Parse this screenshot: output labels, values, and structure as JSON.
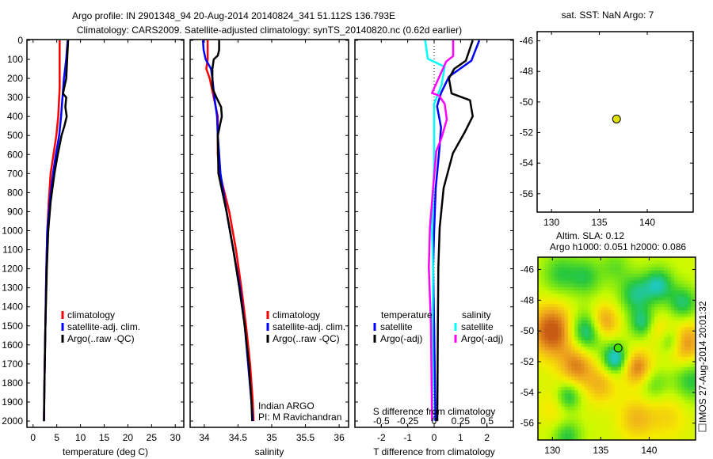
{
  "title": {
    "line1": "Argo profile: IN 2901348_94 20-Aug-2014 20140824_341 51.112S 136.793E",
    "line2": "Climatology: CARS2009. Satellite-adjusted climatology: synTS_20140820.nc (0.62d earlier)"
  },
  "colors": {
    "climatology": "#ff0000",
    "satellite": "#0000ff",
    "argo": "#000000",
    "sal_satellite": "#00ffff",
    "sal_argo": "#ff00ff"
  },
  "chart_data": [
    {
      "type": "line",
      "id": "temperature",
      "xlabel": "temperature (deg C)",
      "ylabel": "",
      "xlim": [
        -1.3,
        31.8
      ],
      "ylim": [
        2033,
        -4
      ],
      "xticks": [
        0,
        5,
        10,
        15,
        20,
        25,
        30
      ],
      "xtick_labels": [
        "0",
        "5",
        "10",
        "15",
        "20",
        "25",
        "30"
      ],
      "yticks": [
        0,
        100,
        200,
        300,
        400,
        500,
        600,
        700,
        800,
        900,
        1000,
        1100,
        1200,
        1300,
        1400,
        1500,
        1600,
        1700,
        1800,
        1900,
        2000
      ],
      "ytick_labels": [
        "0",
        "100",
        "200",
        "300",
        "400",
        "500",
        "600",
        "700",
        "800",
        "900",
        "1000",
        "1100",
        "1200",
        "1300",
        "1400",
        "1500",
        "1600",
        "1700",
        "1800",
        "1900",
        "2000"
      ],
      "legend": [
        "climatology",
        "satellite-adj. clim.",
        "Argo(..raw -QC)"
      ],
      "series": [
        {
          "name": "climatology",
          "color": "#ff0000",
          "depth": [
            0,
            100,
            250,
            300,
            400,
            500,
            600,
            700,
            850,
            1000,
            1200,
            1500,
            1800,
            2000
          ],
          "values": [
            5.6,
            5.6,
            5.6,
            5.5,
            5.3,
            4.9,
            4.3,
            3.7,
            3.3,
            3.0,
            2.8,
            2.6,
            2.4,
            2.3
          ]
        },
        {
          "name": "satellite-adj. clim.",
          "color": "#0000ff",
          "depth": [
            0,
            100,
            200,
            300,
            400,
            500,
            600,
            700,
            850,
            1000,
            1200,
            1500,
            1800,
            2000
          ],
          "values": [
            7.3,
            7.0,
            6.5,
            6.2,
            5.9,
            5.5,
            4.8,
            4.2,
            3.5,
            3.0,
            2.8,
            2.6,
            2.4,
            2.3
          ]
        },
        {
          "name": "Argo(..raw -QC)",
          "color": "#000000",
          "depth": [
            0,
            100,
            200,
            280,
            300,
            350,
            400,
            450,
            500,
            600,
            700,
            850,
            1000,
            1200,
            1500,
            1800,
            2000
          ],
          "values": [
            7.4,
            7.2,
            7.0,
            6.3,
            7.0,
            6.8,
            7.1,
            6.6,
            6.0,
            5.2,
            4.5,
            3.7,
            3.2,
            2.9,
            2.6,
            2.4,
            2.3
          ]
        }
      ]
    },
    {
      "type": "line",
      "id": "salinity",
      "xlabel": "salinity",
      "xlim": [
        33.79,
        36.14
      ],
      "ylim": [
        2033,
        -4
      ],
      "xticks": [
        34,
        34.5,
        35,
        35.5,
        36
      ],
      "xtick_labels": [
        "34",
        "34.5",
        "35",
        "35.5",
        "36"
      ],
      "legend": [
        "climatology",
        "satellite-adj. clim.",
        "Argo(..raw -QC)"
      ],
      "annotation": [
        "Indian ARGO",
        "PI: M Ravichandran"
      ],
      "series": [
        {
          "name": "climatology",
          "color": "#ff0000",
          "depth": [
            0,
            100,
            150,
            200,
            300,
            400,
            500,
            600,
            700,
            900,
            1100,
            1300,
            1500,
            1700,
            1900,
            2000
          ],
          "values": [
            34.05,
            34.05,
            34.03,
            34.08,
            34.14,
            34.2,
            34.2,
            34.2,
            34.23,
            34.37,
            34.47,
            34.55,
            34.62,
            34.68,
            34.72,
            34.73
          ]
        },
        {
          "name": "satellite-adj. clim.",
          "color": "#0000ff",
          "depth": [
            0,
            50,
            100,
            150,
            200,
            300,
            400,
            500,
            700,
            900,
            1100,
            1300,
            1500,
            1700,
            1900,
            2000
          ],
          "values": [
            33.98,
            33.99,
            34.02,
            34.1,
            34.12,
            34.15,
            34.19,
            34.2,
            34.24,
            34.33,
            34.43,
            34.53,
            34.6,
            34.65,
            34.7,
            34.72
          ]
        },
        {
          "name": "Argo(..raw -QC)",
          "color": "#000000",
          "depth": [
            0,
            50,
            80,
            100,
            150,
            250,
            300,
            350,
            400,
            450,
            500,
            700,
            900,
            1100,
            1300,
            1500,
            1700,
            1900,
            2000
          ],
          "values": [
            34.22,
            34.22,
            34.2,
            34.14,
            34.12,
            34.12,
            34.18,
            34.25,
            34.26,
            34.23,
            34.2,
            34.21,
            34.33,
            34.43,
            34.52,
            34.6,
            34.66,
            34.7,
            34.71
          ]
        }
      ]
    },
    {
      "type": "line",
      "id": "difference",
      "xlabel": "T difference from climatology",
      "xlim": [
        -3,
        3
      ],
      "ylim": [
        2033,
        -4
      ],
      "xticks": [
        -2,
        -1,
        0,
        1,
        2
      ],
      "xtick_labels": [
        "-2",
        "-1",
        "0",
        "1",
        "2"
      ],
      "x2label": "S difference from climatology",
      "x2lim": [
        -0.75,
        0.75
      ],
      "x2ticks": [
        -0.5,
        -0.25,
        0,
        0.25,
        0.5
      ],
      "x2tick_labels": [
        "-0.5",
        "-0.25",
        "0",
        "0.25",
        "0.5"
      ],
      "legend_headers": [
        "temperature",
        "salinity"
      ],
      "legend": [
        "satellite",
        "Argo(-adj)",
        "satellite",
        "Argo(-adj)"
      ],
      "series": [
        {
          "name": "T satellite",
          "axis": "T",
          "color": "#0000ff",
          "depth": [
            0,
            107,
            191,
            277,
            346,
            457,
            568,
            776,
            1000,
            1192,
            1500,
            2000
          ],
          "values": [
            1.71,
            1.41,
            0.56,
            0.26,
            0.11,
            0.26,
            0.2,
            0.06,
            0.0,
            -0.04,
            0.0,
            0.05
          ]
        },
        {
          "name": "T Argo(-adj)",
          "axis": "T",
          "color": "#000000",
          "depth": [
            0,
            107,
            150,
            200,
            279,
            315,
            399,
            482,
            593,
            776,
            983,
            1192,
            1500,
            2000
          ],
          "values": [
            1.46,
            1.2,
            0.76,
            0.56,
            0.66,
            1.36,
            1.46,
            1.16,
            0.71,
            0.36,
            0.21,
            0.16,
            0.14,
            0.12
          ]
        },
        {
          "name": "S satellite",
          "axis": "S",
          "color": "#00ffff",
          "depth": [
            0,
            97,
            139,
            236,
            333,
            652,
            999,
            1192,
            1500,
            2000
          ],
          "values": [
            -0.085,
            -0.06,
            0.1,
            0.07,
            0.0,
            0.0,
            -0.02,
            -0.01,
            -0.015,
            -0.015
          ]
        },
        {
          "name": "S Argo(-adj)",
          "axis": "S",
          "color": "#ff00ff",
          "depth": [
            0,
            83,
            111,
            166,
            277,
            290,
            333,
            416,
            513,
            582,
            776,
            983,
            1192,
            1500,
            2000
          ],
          "values": [
            0.18,
            0.18,
            0.115,
            0.07,
            -0.02,
            0.045,
            0.1,
            0.12,
            0.07,
            0.02,
            -0.01,
            -0.04,
            -0.05,
            -0.03,
            -0.02
          ]
        }
      ]
    },
    {
      "type": "scatter",
      "id": "sst-map",
      "title": "sat. SST: NaN Argo: 7",
      "xlim": [
        128.5,
        144.8
      ],
      "ylim": [
        -57.2,
        -45.4
      ],
      "xticks": [
        130,
        135,
        140
      ],
      "xtick_labels": [
        "130",
        "135",
        "140"
      ],
      "yticks": [
        -46,
        -48,
        -50,
        -52,
        -54,
        -56
      ],
      "ytick_labels": [
        "-46",
        "-48",
        "-50",
        "-52",
        "-54",
        "-56"
      ],
      "points": [
        {
          "lon": 136.793,
          "lat": -51.112,
          "color": "#e0e000"
        }
      ]
    },
    {
      "type": "heatmap",
      "id": "sla-map",
      "title": [
        "Altim. SLA: 0.12",
        "Argo h1000: 0.051 h2000: 0.086"
      ],
      "side_label": "IMOS 27-Aug-2014 20:01:32",
      "xlim": [
        128.5,
        144.8
      ],
      "ylim": [
        -57.1,
        -45.2
      ],
      "xticks": [
        130,
        135,
        140
      ],
      "xtick_labels": [
        "130",
        "135",
        "140"
      ],
      "yticks": [
        -46,
        -48,
        -50,
        -52,
        -54,
        -56
      ],
      "ytick_labels": [
        "-46",
        "-48",
        "-50",
        "-52",
        "-54",
        "-56"
      ],
      "points": [
        {
          "lon": 136.793,
          "lat": -51.112,
          "color": "#40e000"
        }
      ]
    }
  ]
}
